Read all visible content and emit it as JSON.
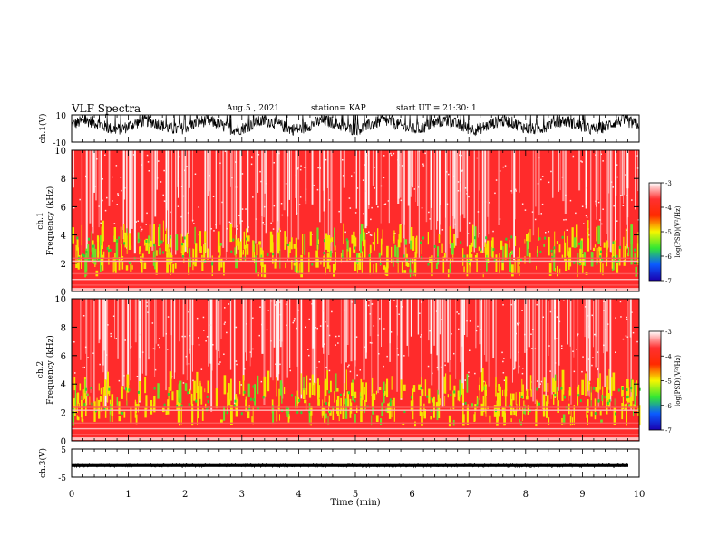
{
  "header": {
    "title": "VLF Spectra",
    "date": "Aug.5 , 2021",
    "station": "station= KAP",
    "start": "start UT = 21:30: 1"
  },
  "colors": {
    "spectro_ramp": [
      "#ffffff",
      "#ff3030",
      "#ff2a00",
      "#f6f600",
      "#33e833",
      "#0a5cff",
      "#1a00b0"
    ],
    "trace": "#000000"
  },
  "chart_data": [
    {
      "type": "line",
      "panel": "ch1-waveform",
      "ylabel": "ch.1(V)",
      "ylim": [
        -10,
        10
      ],
      "yticks": [
        "10",
        "-10"
      ],
      "xlim": [
        0,
        10
      ],
      "note_series": "noisy waveform oscillating roughly between -5 and 10 V, period ~1 min"
    },
    {
      "type": "heatmap",
      "panel": "ch1-spectrogram",
      "ylabel": "ch.1 Frequency (kHz)",
      "ylabel_lines": [
        "ch.1",
        "Frequency (kHz)"
      ],
      "ylim": [
        0,
        10
      ],
      "yticks": [
        "0",
        "2",
        "4",
        "6",
        "8",
        "10"
      ],
      "xlim": [
        0,
        10
      ],
      "colorbar": {
        "label": "log(PSD)(V²/Hz)",
        "range": [
          -7,
          -3
        ],
        "ticks": [
          "-3",
          "-4",
          "-5",
          "-6",
          "-7"
        ]
      }
    },
    {
      "type": "heatmap",
      "panel": "ch2-spectrogram",
      "ylabel": "ch.2 Frequency (kHz)",
      "ylabel_lines": [
        "ch.2",
        "Frequency (kHz)"
      ],
      "ylim": [
        0,
        10
      ],
      "yticks": [
        "0",
        "2",
        "4",
        "6",
        "8",
        "10"
      ],
      "xlim": [
        0,
        10
      ],
      "colorbar": {
        "label": "log(PSD)(V²/Hz)",
        "range": [
          -7,
          -3
        ],
        "ticks": [
          "-3",
          "-4",
          "-5",
          "-6",
          "-7"
        ]
      }
    },
    {
      "type": "line",
      "panel": "ch3-waveform",
      "ylabel": "ch.3(V)",
      "ylim": [
        -5,
        5
      ],
      "yticks": [
        "5",
        "-5"
      ],
      "xlim": [
        0,
        10
      ],
      "xlabel": "Time (min)",
      "xticks": [
        "0",
        "1",
        "2",
        "3",
        "4",
        "5",
        "6",
        "7",
        "8",
        "9",
        "10"
      ]
    }
  ]
}
